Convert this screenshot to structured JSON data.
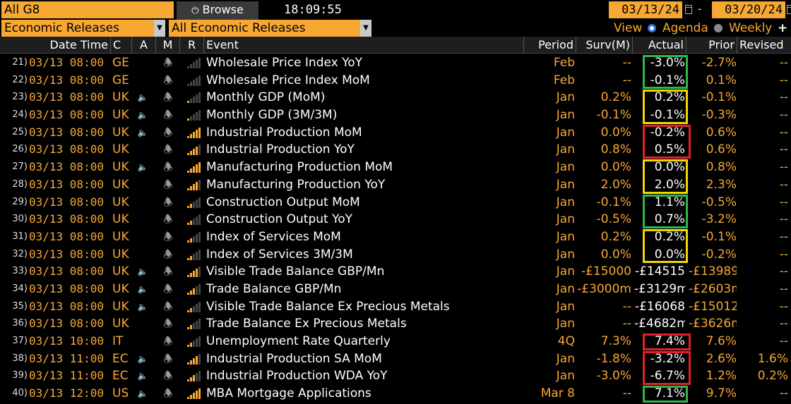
{
  "toolbar": {
    "group": "All G8",
    "browse_label": "Browse",
    "clock": "18:09:55",
    "start_date": "03/13/24",
    "end_date": "03/20/24",
    "category": "Economic Releases",
    "subcategory": "All Economic Releases",
    "view_label": "View",
    "agenda_label": "Agenda",
    "weekly_label": "Weekly",
    "add_label": "+"
  },
  "columns": {
    "datetime": "Date Time",
    "country": "C",
    "alert": "A",
    "monitor": "M",
    "relevance": "R",
    "event": "Event",
    "period": "Period",
    "survey": "Surv(M)",
    "actual": "Actual",
    "prior": "Prior",
    "revised": "Revised"
  },
  "colors": {
    "accent": "#f7a833",
    "green": "#2fb84a",
    "yellow": "#f2d600",
    "red": "#e2202a"
  },
  "rows": [
    {
      "n": "21)",
      "date": "03/13 08:00",
      "c": "GE",
      "a": false,
      "r": 0,
      "event": "Wholesale Price Index YoY",
      "period": "Feb",
      "surv": "--",
      "actual": "-3.0%",
      "prior": "-2.7%",
      "rev": "--"
    },
    {
      "n": "22)",
      "date": "03/13 08:00",
      "c": "GE",
      "a": false,
      "r": 0,
      "event": "Wholesale Price Index MoM",
      "period": "Feb",
      "surv": "--",
      "actual": "-0.1%",
      "prior": "0.1%",
      "rev": "--"
    },
    {
      "n": "23)",
      "date": "03/13 08:00",
      "c": "UK",
      "a": true,
      "r": 1,
      "event": "Monthly GDP (MoM)",
      "period": "Jan",
      "surv": "0.2%",
      "actual": "0.2%",
      "prior": "-0.1%",
      "rev": "--"
    },
    {
      "n": "24)",
      "date": "03/13 08:00",
      "c": "UK",
      "a": true,
      "r": 1,
      "event": "Monthly GDP (3M/3M)",
      "period": "Jan",
      "surv": "-0.1%",
      "actual": "-0.1%",
      "prior": "-0.3%",
      "rev": "--"
    },
    {
      "n": "25)",
      "date": "03/13 08:00",
      "c": "UK",
      "a": true,
      "r": 5,
      "event": "Industrial Production MoM",
      "period": "Jan",
      "surv": "0.0%",
      "actual": "-0.2%",
      "prior": "0.6%",
      "rev": "--"
    },
    {
      "n": "26)",
      "date": "03/13 08:00",
      "c": "UK",
      "a": false,
      "r": 4,
      "event": "Industrial Production YoY",
      "period": "Jan",
      "surv": "0.8%",
      "actual": "0.5%",
      "prior": "0.6%",
      "rev": "--"
    },
    {
      "n": "27)",
      "date": "03/13 08:00",
      "c": "UK",
      "a": true,
      "r": 5,
      "event": "Manufacturing Production MoM",
      "period": "Jan",
      "surv": "0.0%",
      "actual": "0.0%",
      "prior": "0.8%",
      "rev": "--"
    },
    {
      "n": "28)",
      "date": "03/13 08:00",
      "c": "UK",
      "a": false,
      "r": 4,
      "event": "Manufacturing Production YoY",
      "period": "Jan",
      "surv": "2.0%",
      "actual": "2.0%",
      "prior": "2.3%",
      "rev": "--"
    },
    {
      "n": "29)",
      "date": "03/13 08:00",
      "c": "UK",
      "a": false,
      "r": 2,
      "event": "Construction Output MoM",
      "period": "Jan",
      "surv": "-0.1%",
      "actual": "1.1%",
      "prior": "-0.5%",
      "rev": "--"
    },
    {
      "n": "30)",
      "date": "03/13 08:00",
      "c": "UK",
      "a": false,
      "r": 2,
      "event": "Construction Output YoY",
      "period": "Jan",
      "surv": "-0.5%",
      "actual": "0.7%",
      "prior": "-3.2%",
      "rev": "--"
    },
    {
      "n": "31)",
      "date": "03/13 08:00",
      "c": "UK",
      "a": false,
      "r": 2,
      "event": "Index of Services MoM",
      "period": "Jan",
      "surv": "0.2%",
      "actual": "0.2%",
      "prior": "-0.1%",
      "rev": "--"
    },
    {
      "n": "32)",
      "date": "03/13 08:00",
      "c": "UK",
      "a": false,
      "r": 2,
      "event": "Index of Services 3M/3M",
      "period": "Jan",
      "surv": "0.0%",
      "actual": "0.0%",
      "prior": "-0.2%",
      "rev": "--"
    },
    {
      "n": "33)",
      "date": "03/13 08:00",
      "c": "UK",
      "a": true,
      "r": 4,
      "event": "Visible Trade Balance GBP/Mn",
      "period": "Jan",
      "surv": "-£15000",
      "actual": "-£14515",
      "prior": "-£13989",
      "rev": "--"
    },
    {
      "n": "34)",
      "date": "03/13 08:00",
      "c": "UK",
      "a": true,
      "r": 3,
      "event": "Trade Balance GBP/Mn",
      "period": "Jan",
      "surv": "-£3000m",
      "actual": "-£3129m",
      "prior": "-£2603m",
      "rev": "--"
    },
    {
      "n": "35)",
      "date": "03/13 08:00",
      "c": "UK",
      "a": true,
      "r": 2,
      "event": "Visible Trade Balance Ex Precious Metals",
      "period": "Jan",
      "surv": "--",
      "actual": "-£16068",
      "prior": "-£15012",
      "rev": "--"
    },
    {
      "n": "36)",
      "date": "03/13 08:00",
      "c": "UK",
      "a": false,
      "r": 2,
      "event": "Trade Balance Ex Precious Metals",
      "period": "Jan",
      "surv": "--",
      "actual": "-£4682m",
      "prior": "-£3626m",
      "rev": "--"
    },
    {
      "n": "37)",
      "date": "03/13 10:00",
      "c": "IT",
      "a": false,
      "r": 2,
      "event": "Unemployment Rate Quarterly",
      "period": "4Q",
      "surv": "7.3%",
      "actual": "7.4%",
      "prior": "7.6%",
      "rev": "--"
    },
    {
      "n": "38)",
      "date": "03/13 11:00",
      "c": "EC",
      "a": true,
      "r": 4,
      "event": "Industrial Production SA MoM",
      "period": "Jan",
      "surv": "-1.8%",
      "actual": "-3.2%",
      "prior": "2.6%",
      "rev": "1.6%"
    },
    {
      "n": "39)",
      "date": "03/13 11:00",
      "c": "EC",
      "a": true,
      "r": 3,
      "event": "Industrial Production WDA YoY",
      "period": "Jan",
      "surv": "-3.0%",
      "actual": "-6.7%",
      "prior": "1.2%",
      "rev": "0.2%"
    },
    {
      "n": "40)",
      "date": "03/13 12:00",
      "c": "US",
      "a": true,
      "r": 5,
      "event": "MBA Mortgage Applications",
      "period": "Mar 8",
      "surv": "--",
      "actual": "7.1%",
      "prior": "9.7%",
      "rev": "--"
    }
  ],
  "highlights": [
    {
      "from": 0,
      "to": 1,
      "color": "green"
    },
    {
      "from": 2,
      "to": 3,
      "color": "yellow"
    },
    {
      "from": 4,
      "to": 5,
      "color": "red"
    },
    {
      "from": 6,
      "to": 7,
      "color": "yellow"
    },
    {
      "from": 8,
      "to": 9,
      "color": "green"
    },
    {
      "from": 10,
      "to": 11,
      "color": "yellow"
    },
    {
      "from": 16,
      "to": 16,
      "color": "red"
    },
    {
      "from": 17,
      "to": 18,
      "color": "red"
    },
    {
      "from": 19,
      "to": 19,
      "color": "green"
    }
  ]
}
